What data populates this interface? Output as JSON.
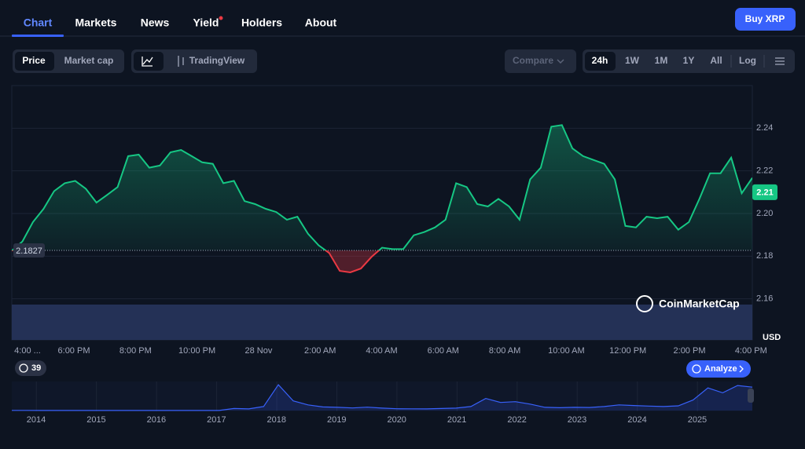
{
  "nav": {
    "tabs": [
      "Chart",
      "Markets",
      "News",
      "Yield",
      "Holders",
      "About"
    ],
    "buy_button": "Buy XRP"
  },
  "toolbar": {
    "metric": [
      "Price",
      "Market cap"
    ],
    "tradingview": "TradingView",
    "compare": "Compare",
    "ranges": [
      "24h",
      "1W",
      "1M",
      "1Y",
      "All"
    ],
    "log": "Log"
  },
  "chart_data": {
    "type": "line",
    "color": "#16c784",
    "below_color": "#ea3943",
    "x_labels": [
      "4:00 ...",
      "6:00 PM",
      "8:00 PM",
      "10:00 PM",
      "28 Nov",
      "2:00 AM",
      "4:00 AM",
      "6:00 AM",
      "8:00 AM",
      "10:00 AM",
      "12:00 PM",
      "2:00 PM",
      "4:00 PM"
    ],
    "ylim": [
      2.14,
      2.26
    ],
    "yticks": [
      2.16,
      2.18,
      {
        "value": 2.2,
        "label": "2.20"
      },
      2.22,
      2.24
    ],
    "baseline": 2.1827,
    "current_price": 2.21,
    "unit": "USD",
    "watermark": "CoinMarketCap",
    "values": [
      2.1825,
      2.1869,
      2.196,
      2.2022,
      2.2105,
      2.2142,
      2.2153,
      2.2116,
      2.2051,
      2.2087,
      2.2124,
      2.2269,
      2.2276,
      2.2215,
      2.2225,
      2.2287,
      2.2298,
      2.2269,
      2.224,
      2.2233,
      2.2142,
      2.2153,
      2.2058,
      2.2044,
      2.2022,
      2.2007,
      2.1971,
      2.1985,
      2.1905,
      2.1851,
      2.1815,
      2.1731,
      2.1724,
      2.1742,
      2.1796,
      2.184,
      2.1833,
      2.1833,
      2.1898,
      2.1913,
      2.1935,
      2.1971,
      2.2142,
      2.2124,
      2.2044,
      2.2033,
      2.2069,
      2.2033,
      2.1971,
      2.216,
      2.2215,
      2.2407,
      2.2415,
      2.2305,
      2.2269,
      2.2251,
      2.2233,
      2.216,
      2.1942,
      2.1935,
      2.1985,
      2.1978,
      2.1985,
      2.1924,
      2.196,
      2.2069,
      2.2189,
      2.2189,
      2.2262,
      2.2095,
      2.2167
    ],
    "overview": {
      "type": "line",
      "color": "#3861fb",
      "years": [
        2014,
        2015,
        2016,
        2017,
        2018,
        2019,
        2020,
        2021,
        2022,
        2023,
        2024,
        2025
      ],
      "ylim": [
        0,
        3.5
      ],
      "values": [
        0.02,
        0.02,
        0.01,
        0.01,
        0.01,
        0.01,
        0.01,
        0.01,
        0.01,
        0.01,
        0.01,
        0.01,
        0.01,
        0.01,
        0.01,
        0.25,
        0.2,
        0.5,
        3.2,
        1.2,
        0.7,
        0.45,
        0.4,
        0.32,
        0.42,
        0.3,
        0.22,
        0.21,
        0.2,
        0.25,
        0.3,
        0.5,
        1.5,
        1.0,
        1.1,
        0.8,
        0.4,
        0.35,
        0.4,
        0.38,
        0.5,
        0.7,
        0.62,
        0.55,
        0.5,
        0.58,
        1.3,
        2.8,
        2.2,
        3.1,
        2.9
      ]
    }
  },
  "badges": {
    "history": "39",
    "analyze": "Analyze"
  }
}
